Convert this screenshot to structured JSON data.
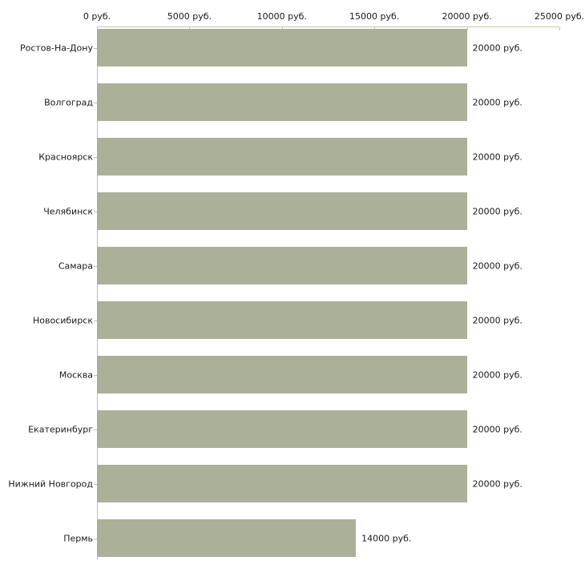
{
  "chart_data": {
    "type": "bar",
    "orientation": "horizontal",
    "title": "",
    "xlabel": "",
    "ylabel": "",
    "categories": [
      "Ростов-На-Дону",
      "Волгоград",
      "Красноярск",
      "Челябинск",
      "Самара",
      "Новосибирск",
      "Москва",
      "Екатеринбург",
      "Нижний Новгород",
      "Пермь"
    ],
    "values": [
      20000,
      20000,
      20000,
      20000,
      20000,
      20000,
      20000,
      20000,
      20000,
      14000
    ],
    "value_labels": [
      "20000 руб.",
      "20000 руб.",
      "20000 руб.",
      "20000 руб.",
      "20000 руб.",
      "20000 руб.",
      "20000 руб.",
      "20000 руб.",
      "20000 руб.",
      "14000 руб."
    ],
    "x_ticks": [
      0,
      5000,
      10000,
      15000,
      20000,
      25000
    ],
    "x_tick_labels": [
      "0 руб.",
      "5000 руб.",
      "10000 руб.",
      "15000 руб.",
      "20000 руб.",
      "25000 руб."
    ],
    "xlim": [
      0,
      25000
    ],
    "grid": false,
    "legend": "none",
    "axis_position": "top"
  },
  "colors": {
    "background": "#ffffff",
    "bar": "#abb199",
    "top_axis_line": "#c9c9a9",
    "x_tick_mark": "#c9c9a9",
    "left_axis_line": "#bbbbbb",
    "y_tick_mark": "#c3c3a5",
    "text": "#1a1a1a"
  }
}
